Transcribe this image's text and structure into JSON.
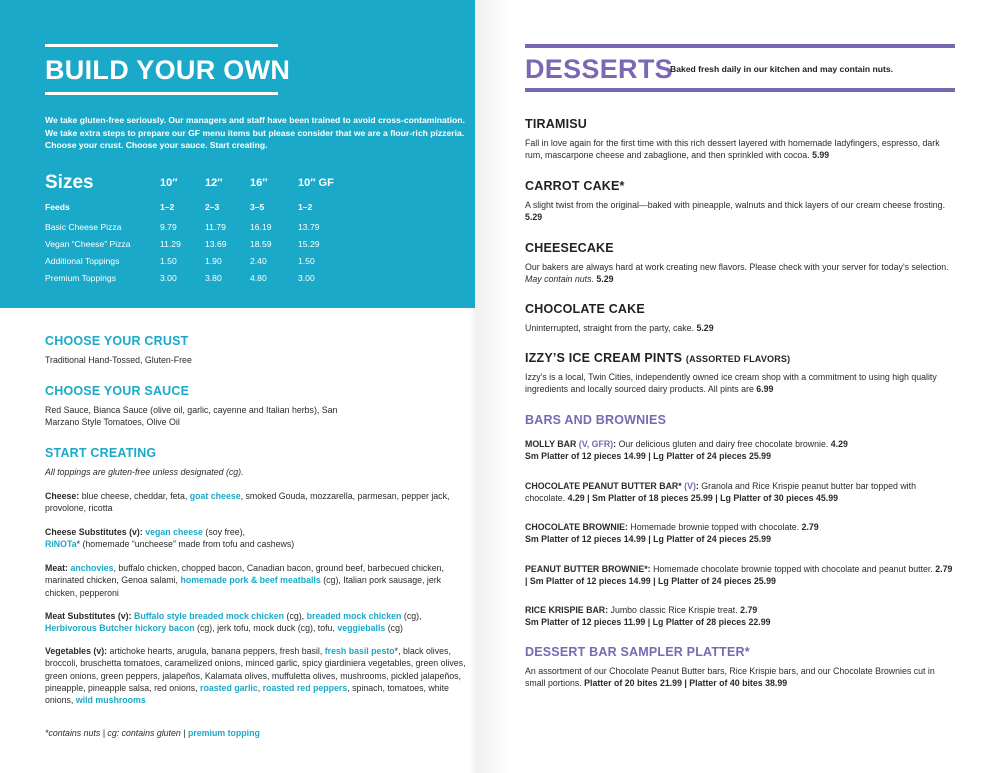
{
  "left": {
    "title": "BUILD YOUR OWN",
    "intro": "We take gluten-free seriously. Our managers and staff have been trained to avoid cross-contamination. We take extra steps to prepare our GF menu items but please consider that we are a flour-rich pizzeria. Choose your crust. Choose your sauce. Start creating.",
    "sizes": {
      "header": [
        "Sizes",
        "10″",
        "12″",
        "16″",
        "10″ GF"
      ],
      "rows": [
        [
          "Feeds",
          "1–2",
          "2–3",
          "3–5",
          "1–2"
        ],
        [
          "Basic Cheese Pizza",
          "9.79",
          "11.79",
          "16.19",
          "13.79"
        ],
        [
          "Vegan “Cheese” Pizza",
          "11.29",
          "13.69",
          "18.59",
          "15.29"
        ],
        [
          "Additional Toppings",
          "1.50",
          "1.90",
          "2.40",
          "1.50"
        ],
        [
          "Premium Toppings",
          "3.00",
          "3.80",
          "4.80",
          "3.00"
        ]
      ]
    },
    "crust": {
      "title": "CHOOSE YOUR CRUST",
      "text": "Traditional Hand-Tossed, Gluten-Free"
    },
    "sauce": {
      "title": "CHOOSE YOUR SAUCE",
      "text": "Red Sauce, Bianca Sauce (olive oil, garlic, cayenne and Italian herbs), San Marzano Style Tomatoes, Olive Oil"
    },
    "create": {
      "title": "START CREATING",
      "note": "All toppings are gluten-free unless designated (cg).",
      "groups": [
        {
          "label": "Cheese:",
          "parts": [
            "blue cheese, cheddar, feta,",
            "goat cheese",
            ", smoked Gouda, mozzarella, parmesan, pepper jack, provolone, ricotta"
          ]
        },
        {
          "label": "Cheese Substitutes (v):",
          "parts": [
            "vegan cheese",
            "(soy free),",
            "RiNOTa",
            "* (homemade “uncheese” made from tofu and cashews)"
          ]
        },
        {
          "label": "Meat:",
          "parts": [
            "anchovies",
            ", buffalo chicken, chopped bacon, Canadian bacon, ground beef, barbecued chicken, marinated chicken, Genoa salami,",
            "homemade pork & beef meatballs",
            "(cg), Italian pork sausage, jerk chicken, pepperoni"
          ]
        },
        {
          "label": "Meat Substitutes (v):",
          "parts": [
            "Buffalo style breaded mock chicken",
            "(cg),",
            "breaded mock chicken",
            "(cg),",
            "Herbivorous Butcher hickory bacon",
            "(cg), jerk tofu, mock duck (cg), tofu,",
            "veggieballs",
            "(cg)"
          ]
        },
        {
          "label": "Vegetables (v):",
          "parts": [
            "artichoke hearts, arugula, banana peppers, fresh basil,",
            "fresh basil pesto",
            "*, black olives, broccoli, bruschetta tomatoes, caramelized onions, minced garlic, spicy giardiniera vegetables, green olives, green onions, green peppers, jalapeños, Kalamata olives, muffuletta olives, mushrooms, pickled jalapeños, pineapple, pineapple salsa, red onions,",
            "roasted garlic",
            ",",
            "roasted red peppers",
            ", spinach, tomatoes, white onions,",
            "wild mushrooms"
          ]
        }
      ]
    },
    "footnote": [
      "*contains nuts | cg: contains gluten |",
      "premium topping"
    ]
  },
  "right": {
    "title": "DESSERTS",
    "tagline": "Baked fresh daily in our kitchen and may contain nuts.",
    "items": [
      {
        "name": "TIRAMISU",
        "desc": "Fall in love again for the first time with this rich dessert layered with homemade ladyfingers, espresso, dark rum, mascarpone cheese and zabaglione, and then sprinkled with cocoa.",
        "price": "5.99"
      },
      {
        "name": "CARROT CAKE*",
        "desc": "A slight twist from the original—baked with pineapple, walnuts and thick layers of our cream cheese frosting.",
        "price": "5.29"
      },
      {
        "name": "CHEESECAKE",
        "desc": "Our bakers are always hard at work creating new flavors. Please check with your server for today's selection.",
        "note": "May contain nuts.",
        "price": "5.29"
      },
      {
        "name": "CHOCOLATE CAKE",
        "desc": "Uninterrupted, straight from the party, cake.",
        "price": "5.29"
      },
      {
        "name": "IZZY’S ICE CREAM PINTS",
        "sub": "(ASSORTED FLAVORS)",
        "desc": "Izzy's is a local, Twin Cities, independently owned ice cream shop with a commitment to using high quality ingredients and locally sourced dairy products. All pints are",
        "price": "6.99"
      }
    ],
    "bars_title": "BARS AND BROWNIES",
    "bars": [
      {
        "label": [
          "MOLLY BAR",
          "(V, GFR)",
          ":"
        ],
        "desc": "Our delicious gluten and dairy free chocolate brownie.",
        "price": [
          "4.29",
          "Sm Platter of 12 pieces 14.99 | Lg Platter of 24 pieces 25.99"
        ]
      },
      {
        "label": [
          "CHOCOLATE PEANUT BUTTER BAR*",
          "(V)",
          ":"
        ],
        "desc": "Granola and Rice Krispie peanut butter bar topped with chocolate.",
        "price": [
          "4.29 | Sm Platter of 18 pieces 25.99 | Lg Platter of 30 pieces 45.99"
        ]
      },
      {
        "label": [
          "CHOCOLATE BROWNIE:"
        ],
        "desc": "Homemade brownie topped with chocolate.",
        "price": [
          "2.79",
          "Sm Platter of 12 pieces 14.99 | Lg Platter of 24 pieces 25.99"
        ]
      },
      {
        "label": [
          "PEANUT BUTTER BROWNIE*:"
        ],
        "desc": "Homemade chocolate brownie topped with chocolate and peanut butter.",
        "price": [
          "2.79 | Sm Platter of 12 pieces 14.99 | Lg Platter of 24 pieces 25.99"
        ]
      },
      {
        "label": [
          "RICE KRISPIE BAR:"
        ],
        "desc": "Jumbo classic Rice Krispie treat.",
        "price": [
          "2.79",
          "Sm Platter of 12 pieces 11.99 | Lg Platter of 28 pieces 22.99"
        ]
      }
    ],
    "sampler": {
      "title": "DESSERT BAR SAMPLER PLATTER*",
      "desc": "An assortment of our Chocolate Peanut Butter bars, Rice Krispie bars, and our Chocolate Brownies cut in small portions.",
      "price": "Platter of 20 bites 21.99 | Platter of 40 bites 38.99"
    }
  }
}
